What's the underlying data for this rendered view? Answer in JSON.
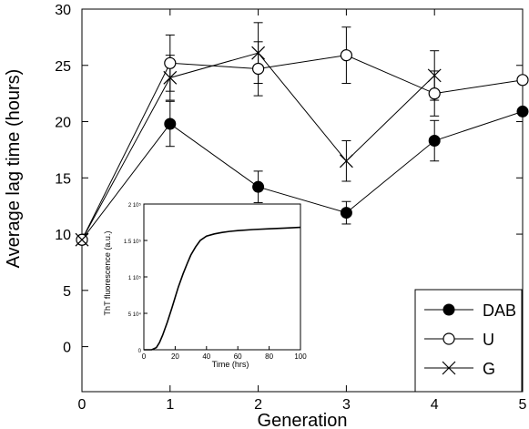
{
  "chart_data": [
    {
      "type": "line",
      "xlabel": "Generation",
      "ylabel": "Average lag time (hours)",
      "xlim": [
        0,
        5
      ],
      "ylim": [
        -4,
        30
      ],
      "x_ticks": [
        0,
        1,
        2,
        3,
        4,
        5
      ],
      "x_tick_labels": [
        "0",
        "1",
        "2",
        "3",
        "4",
        "5"
      ],
      "y_ticks": [
        0,
        5,
        10,
        15,
        20,
        25,
        30
      ],
      "y_tick_labels": [
        "0",
        "5",
        "10",
        "15",
        "20",
        "25",
        "30"
      ],
      "grid": false,
      "legend_position": "bottom-right",
      "x": [
        0,
        1,
        2,
        3,
        4,
        5
      ],
      "series": [
        {
          "name": "DAB",
          "marker": "filled-circle",
          "values": [
            9.5,
            19.8,
            14.2,
            11.9,
            18.3,
            20.9
          ],
          "errors": [
            0,
            2.0,
            1.4,
            1.0,
            1.8,
            0
          ]
        },
        {
          "name": "U",
          "marker": "open-circle",
          "values": [
            9.5,
            25.2,
            24.7,
            25.9,
            22.5,
            23.7
          ],
          "errors": [
            0,
            2.5,
            2.4,
            2.5,
            2.0,
            0
          ]
        },
        {
          "name": "G",
          "marker": "cross",
          "values": [
            9.5,
            23.9,
            26.1,
            16.5,
            24.1,
            null
          ],
          "errors": [
            0,
            2.0,
            2.7,
            1.8,
            2.2,
            0
          ]
        }
      ]
    },
    {
      "type": "line",
      "xlabel": "Time (hrs)",
      "ylabel": "ThT fluorescence (a.u.)",
      "xlim": [
        0,
        100
      ],
      "ylim": [
        0,
        200000
      ],
      "x_ticks": [
        0,
        20,
        40,
        60,
        80,
        100
      ],
      "x_tick_labels": [
        "0",
        "20",
        "40",
        "60",
        "80",
        "100"
      ],
      "y_ticks": [
        0,
        50000,
        100000,
        150000,
        200000
      ],
      "y_tick_labels": [
        "0",
        "5 10⁴",
        "1 10⁵",
        "1.5 10⁵",
        "2 10⁵"
      ],
      "series": [
        {
          "x": [
            0,
            5,
            8,
            10,
            12,
            15,
            18,
            20,
            22,
            25,
            28,
            30,
            33,
            36,
            40,
            45,
            50,
            55,
            60,
            70,
            80,
            90,
            100
          ],
          "values": [
            0,
            0,
            3000,
            10000,
            20000,
            38000,
            58000,
            72000,
            86000,
            104000,
            120000,
            130000,
            141000,
            150000,
            156000,
            159000,
            161000,
            162500,
            163500,
            165000,
            166000,
            167000,
            168000
          ]
        }
      ]
    }
  ]
}
